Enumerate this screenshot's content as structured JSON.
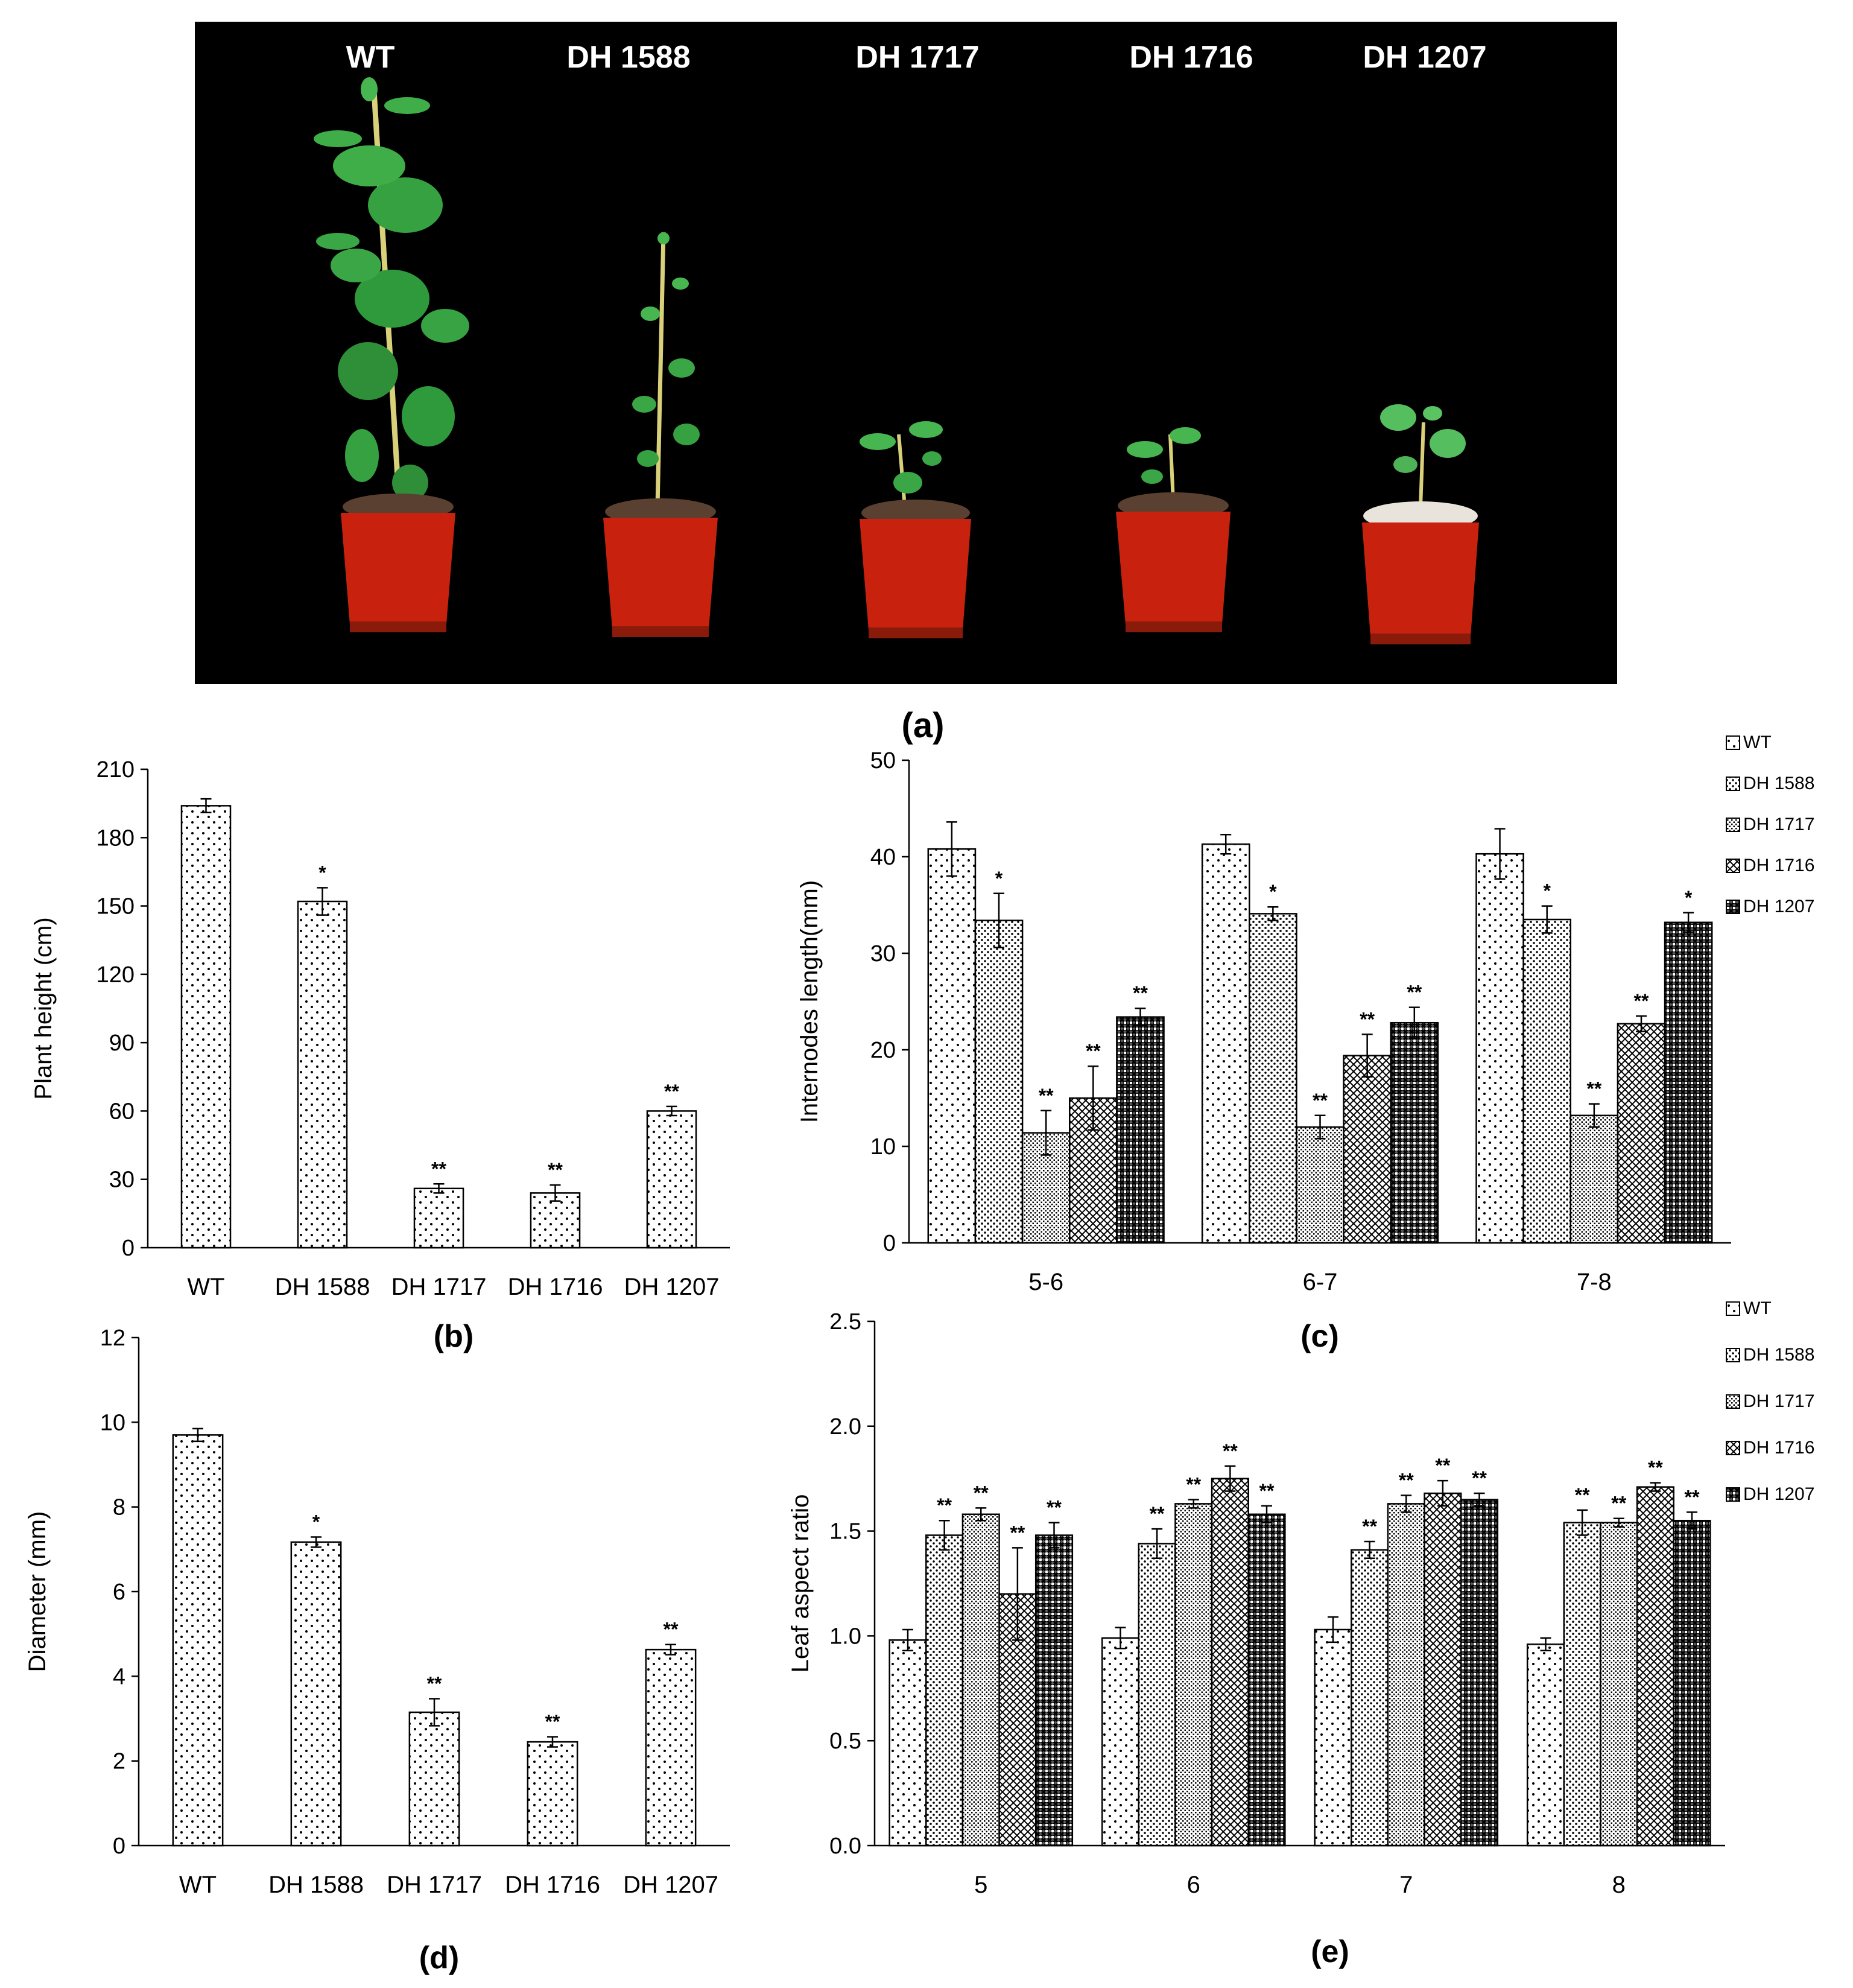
{
  "photo": {
    "labels": [
      "WT",
      "DH 1588",
      "DH 1717",
      "DH 1716",
      "DH 1207"
    ]
  },
  "panel_labels": {
    "a": "(a)",
    "b": "(b)",
    "c": "(c)",
    "d": "(d)",
    "e": "(e)"
  },
  "colors": {
    "background": "#ffffff",
    "photo_background": "#000000",
    "pot": "#c8220f",
    "leaf": "#3a9a3a",
    "bar_pattern": "#000000"
  },
  "chart_data": [
    {
      "id": "b",
      "type": "bar",
      "ylabel": "Plant height (cm)",
      "categories": [
        "WT",
        "DH 1588",
        "DH 1717",
        "DH 1716",
        "DH 1207"
      ],
      "values": [
        194,
        152,
        26,
        24,
        60
      ],
      "errors": [
        3,
        6,
        2,
        3.5,
        2
      ],
      "significance": [
        "",
        "*",
        "**",
        "**",
        "**"
      ],
      "ylim": [
        0,
        210
      ],
      "yticks": [
        "0",
        "30",
        "60",
        "90",
        "120",
        "150",
        "180",
        "210"
      ],
      "legend": "none"
    },
    {
      "id": "c",
      "type": "bar",
      "ylabel": "Internodes length(mm)",
      "categories": [
        "5-6",
        "6-7",
        "7-8"
      ],
      "series": [
        {
          "name": "WT",
          "values": [
            40.8,
            41.3,
            40.3
          ],
          "errors": [
            2.8,
            1.0,
            2.6
          ],
          "significance": [
            "",
            "",
            ""
          ]
        },
        {
          "name": "DH 1588",
          "values": [
            33.4,
            34.1,
            33.5
          ],
          "errors": [
            2.8,
            0.7,
            1.4
          ],
          "significance": [
            "*",
            "*",
            "*"
          ]
        },
        {
          "name": "DH 1717",
          "values": [
            11.4,
            12.0,
            13.2
          ],
          "errors": [
            2.3,
            1.2,
            1.2
          ],
          "significance": [
            "**",
            "**",
            "**"
          ]
        },
        {
          "name": "DH 1716",
          "values": [
            15.0,
            19.4,
            22.7
          ],
          "errors": [
            3.3,
            2.2,
            0.8
          ],
          "significance": [
            "**",
            "**",
            "**"
          ]
        },
        {
          "name": "DH 1207",
          "values": [
            23.4,
            22.8,
            33.2
          ],
          "errors": [
            0.9,
            1.6,
            1.0
          ],
          "significance": [
            "**",
            "**",
            "*"
          ]
        }
      ],
      "ylim": [
        0,
        50
      ],
      "yticks": [
        "0",
        "10",
        "20",
        "30",
        "40",
        "50"
      ],
      "legend": "top-right"
    },
    {
      "id": "d",
      "type": "bar",
      "ylabel": "Diameter (mm)",
      "categories": [
        "WT",
        "DH 1588",
        "DH 1717",
        "DH 1716",
        "DH 1207"
      ],
      "values": [
        9.7,
        7.17,
        3.15,
        2.45,
        4.63
      ],
      "errors": [
        0.15,
        0.12,
        0.32,
        0.12,
        0.12
      ],
      "significance": [
        "",
        "*",
        "**",
        "**",
        "**"
      ],
      "ylim": [
        0,
        12
      ],
      "yticks": [
        "0",
        "2",
        "4",
        "6",
        "8",
        "10",
        "12"
      ],
      "legend": "none"
    },
    {
      "id": "e",
      "type": "bar",
      "ylabel": "Leaf aspect ratio",
      "categories": [
        "5",
        "6",
        "7",
        "8"
      ],
      "series": [
        {
          "name": "WT",
          "values": [
            0.98,
            0.99,
            1.03,
            0.96
          ],
          "errors": [
            0.05,
            0.05,
            0.06,
            0.03
          ],
          "significance": [
            "",
            "",
            "",
            ""
          ]
        },
        {
          "name": "DH 1588",
          "values": [
            1.48,
            1.44,
            1.41,
            1.54
          ],
          "errors": [
            0.07,
            0.07,
            0.04,
            0.06
          ],
          "significance": [
            "**",
            "**",
            "**",
            "**"
          ]
        },
        {
          "name": "DH 1717",
          "values": [
            1.58,
            1.63,
            1.63,
            1.54
          ],
          "errors": [
            0.03,
            0.02,
            0.04,
            0.02
          ],
          "significance": [
            "**",
            "**",
            "**",
            "**"
          ]
        },
        {
          "name": "DH 1716",
          "values": [
            1.2,
            1.75,
            1.68,
            1.71
          ],
          "errors": [
            0.22,
            0.06,
            0.06,
            0.02
          ],
          "significance": [
            "**",
            "**",
            "**",
            "**"
          ]
        },
        {
          "name": "DH 1207",
          "values": [
            1.48,
            1.58,
            1.65,
            1.55
          ],
          "errors": [
            0.06,
            0.04,
            0.03,
            0.04
          ],
          "significance": [
            "**",
            "**",
            "**",
            "**"
          ]
        }
      ],
      "ylim": [
        0,
        2.5
      ],
      "yticks": [
        "0.0",
        "0.5",
        "1.0",
        "1.5",
        "2.0",
        "2.5"
      ],
      "legend": "top-right"
    }
  ]
}
